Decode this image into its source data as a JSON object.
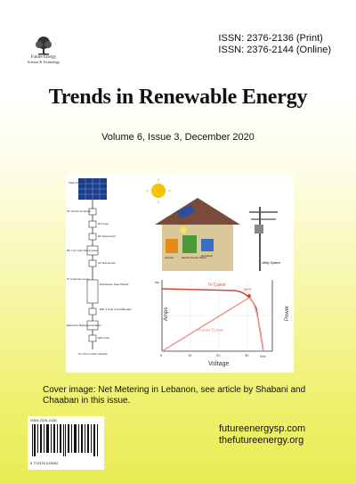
{
  "logo": {
    "name_text": "Future Energy",
    "tagline_text": "Science & Technology"
  },
  "issn": {
    "print": "ISSN: 2376-2136 (Print)",
    "online": "ISSN: 2376-2144 (Online)"
  },
  "journal": {
    "title": "Trends in Renewable Energy",
    "volume": "Volume 6, Issue 3, December 2020"
  },
  "figure": {
    "diagram_labels": [
      "Solar PV Array",
      "PV Circuit Combiner",
      "DC Fuse",
      "DC Disconnect",
      "DC / AC Grid Tied Inverter",
      "AC Disconnect",
      "To Customer Load",
      "Distribution Panel Board",
      "Electronic Bidirectional Meter",
      "EDL Fuse",
      "To / From Utility Network",
      "EDL 2-Pole Circuit Breaker"
    ],
    "house_labels": [
      "Electric Power Panel",
      "Net Meter",
      "Inverter"
    ],
    "utility_label": "Utility System",
    "chart_title_iv": "IV Curve",
    "chart_title_power": "Power Curve",
    "mpp_label": "MPP",
    "ylabel": "Amps",
    "y2label": "Power",
    "xlabel": "Voltage",
    "isc_label": "Isc",
    "voc_label": "Voc",
    "x_ticks": [
      "0",
      "10",
      "20",
      "30"
    ]
  },
  "caption": "Cover image: Net Metering in Lebanon, see article by Shabani and Chaaban in this issue.",
  "barcode": {
    "issn_text": "ISSN 2376-2136",
    "number_text": "9 772376 213002"
  },
  "websites": [
    "futureenergysp.com",
    "thefutureenergy.org"
  ],
  "colors": {
    "background_top": "#ffffff",
    "background_bottom": "#e9ec55",
    "iv_curve": "#d6453a",
    "power_curve": "#e89a92",
    "roof": "#7a4a3a",
    "wall": "#d9c89a"
  }
}
